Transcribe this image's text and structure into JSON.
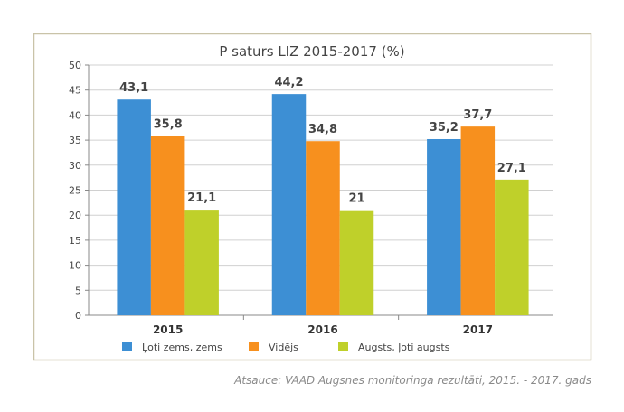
{
  "chart_data": {
    "type": "bar",
    "title": "P saturs LIZ 2015-2017 (%)",
    "categories": [
      "2015",
      "2016",
      "2017"
    ],
    "series": [
      {
        "name": "Ļoti zems, zems",
        "values": [
          43.1,
          44.2,
          35.2
        ],
        "labels": [
          "43,1",
          "44,2",
          "35,2"
        ],
        "color": "#3d8fd4"
      },
      {
        "name": "Vidējs",
        "values": [
          35.8,
          34.8,
          37.7
        ],
        "labels": [
          "35,8",
          "34,8",
          "37,7"
        ],
        "color": "#f7901e"
      },
      {
        "name": "Augsts, ļoti augsts",
        "values": [
          21.1,
          21,
          27.1
        ],
        "labels": [
          "21,1",
          "21",
          "27,1"
        ],
        "color": "#bfd02a"
      }
    ],
    "ylim": [
      0,
      50
    ],
    "yticks": [
      0,
      5,
      10,
      15,
      20,
      25,
      30,
      35,
      40,
      45,
      50
    ],
    "grid": true,
    "legend": "bottom"
  },
  "source": "Atsauce: VAAD Augsnes monitoringa rezultāti, 2015. - 2017. gads"
}
